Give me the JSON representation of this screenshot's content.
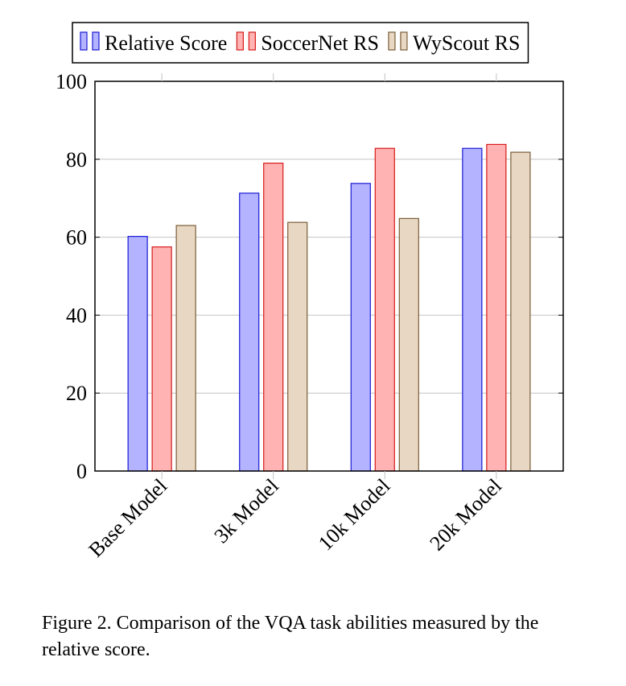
{
  "chart_data": {
    "type": "bar",
    "categories": [
      "Base Model",
      "3k Model",
      "10k Model",
      "20k Model"
    ],
    "series": [
      {
        "name": "Relative Score",
        "values": [
          60.2,
          71.3,
          73.8,
          82.8
        ],
        "fill": "#b3b3ff",
        "stroke": "#1a1ad6"
      },
      {
        "name": "SoccerNet RS",
        "values": [
          57.5,
          79.0,
          82.8,
          83.8
        ],
        "fill": "#ffb3b3",
        "stroke": "#d61a1a"
      },
      {
        "name": "WyScout RS",
        "values": [
          63.0,
          63.8,
          64.8,
          81.8
        ],
        "fill": "#e8d8c3",
        "stroke": "#7a5c38"
      }
    ],
    "ylim": [
      0,
      100
    ],
    "yticks": [
      0,
      20,
      40,
      60,
      80,
      100
    ],
    "grid": true,
    "legend": "top"
  },
  "caption": "Figure 2. Comparison of the VQA task abilities measured by the relative score."
}
